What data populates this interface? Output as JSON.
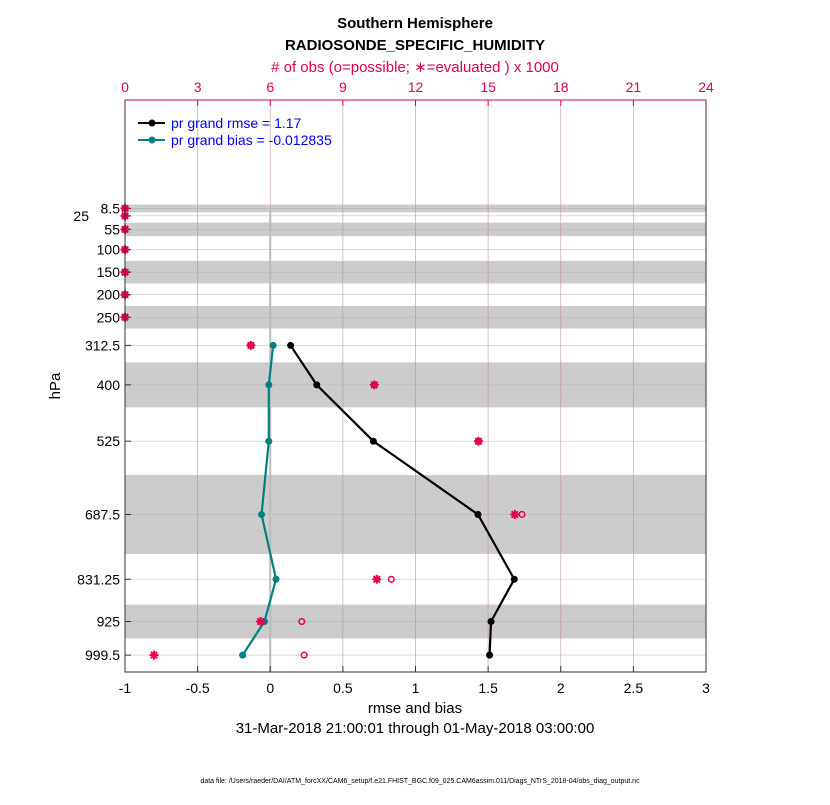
{
  "chart_data": {
    "type": "line",
    "title": "Southern Hemisphere",
    "subtitle": "RADIOSONDE_SPECIFIC_HUMIDITY",
    "top_axis_label": "# of obs (o=possible; ∗=evaluated ) x 1000",
    "xlabel": "rmse and bias",
    "ylabel": "hPa",
    "date_range": "31-Mar-2018 21:00:01 through 01-May-2018 03:00:00",
    "footnote": "data file: /Users/raeder/DAI/ATM_forcXX/CAM6_setup/f.e21.FHIST_BGC.f09_025.CAM6assim.011/Diags_NTrS_2018-04/obs_diag_output.nc",
    "xlim": [
      -1,
      3
    ],
    "xticks": [
      "-1",
      "-0.5",
      "0",
      "0.5",
      "1",
      "1.5",
      "2",
      "2.5",
      "3"
    ],
    "top_xlim": [
      0,
      24
    ],
    "top_xticks": [
      "0",
      "3",
      "6",
      "9",
      "12",
      "15",
      "18",
      "21",
      "24"
    ],
    "ylim": [
      -232,
      1037
    ],
    "y_reversed": true,
    "levels": [
      8.5,
      25,
      55,
      100,
      150,
      200,
      250,
      312.5,
      400,
      525,
      687.5,
      831.25,
      925,
      999.5
    ],
    "level_labels": [
      "8.5",
      "25",
      "55",
      "100",
      "150",
      "200",
      "250",
      "312.5",
      "400",
      "525",
      "687.5",
      "831.25",
      "925",
      "999.5"
    ],
    "gray_bands": [
      [
        0,
        17
      ],
      [
        40,
        70
      ],
      [
        125,
        175
      ],
      [
        225,
        275
      ],
      [
        350,
        450
      ],
      [
        600,
        775
      ],
      [
        887.5,
        962.5
      ]
    ],
    "series": [
      {
        "name": "pr grand rmse = 1.17",
        "color": "#000000",
        "levels": [
          312.5,
          400,
          525,
          687.5,
          831.25,
          925,
          999.5
        ],
        "values": [
          0.14,
          0.32,
          0.71,
          1.43,
          1.68,
          1.52,
          1.51
        ]
      },
      {
        "name": "pr grand bias = -0.012835",
        "color": "#008080",
        "levels": [
          312.5,
          400,
          525,
          687.5,
          831.25,
          925,
          999.5
        ],
        "values": [
          0.02,
          -0.01,
          -0.01,
          -0.06,
          0.04,
          -0.04,
          -0.19
        ]
      }
    ],
    "obs_possible": [
      0,
      0,
      0,
      0,
      0,
      0,
      0,
      5.2,
      10.3,
      14.6,
      16.4,
      11.0,
      7.3,
      7.4
    ],
    "obs_evaluated": [
      0,
      0,
      0,
      0,
      0,
      0,
      0,
      5.2,
      10.3,
      14.6,
      16.1,
      10.4,
      5.6,
      1.2
    ],
    "obs_color": "#e0004f",
    "legend_text_color": "#0000ff",
    "legend_position": "top-left",
    "grid": true
  }
}
